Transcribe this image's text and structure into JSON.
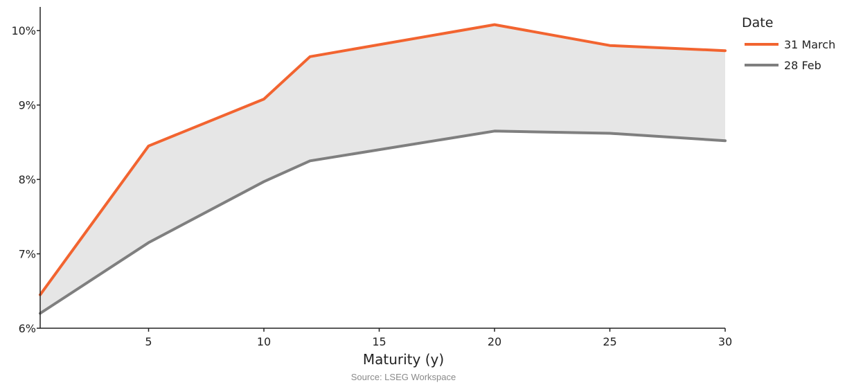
{
  "chart_data": {
    "type": "line",
    "title": "",
    "xlabel": "Maturity (y)",
    "ylabel": "",
    "source": "Source: LSEG Workspace",
    "x": [
      0.3,
      5,
      10,
      12,
      20,
      25,
      30
    ],
    "xlim": [
      0.3,
      30
    ],
    "xticks": [
      5,
      10,
      15,
      20,
      25,
      30
    ],
    "xtick_labels": [
      "5",
      "10",
      "15",
      "20",
      "25",
      "30"
    ],
    "ylim": [
      6,
      10.3
    ],
    "yticks": [
      6,
      7,
      8,
      9,
      10
    ],
    "ytick_labels": [
      "6%",
      "7%",
      "8%",
      "9%",
      "10%"
    ],
    "grid": false,
    "fill_between_series": true,
    "fill_color": "#e6e6e6",
    "legend": {
      "title": "Date",
      "placement": "top-right"
    },
    "series": [
      {
        "name": "31 March",
        "color": "#f26430",
        "values": [
          6.45,
          8.45,
          9.08,
          9.65,
          10.08,
          9.8,
          9.73
        ]
      },
      {
        "name": "28 Feb",
        "color": "#7f7f7f",
        "values": [
          6.2,
          7.15,
          7.97,
          8.25,
          8.65,
          8.62,
          8.52
        ]
      }
    ]
  }
}
